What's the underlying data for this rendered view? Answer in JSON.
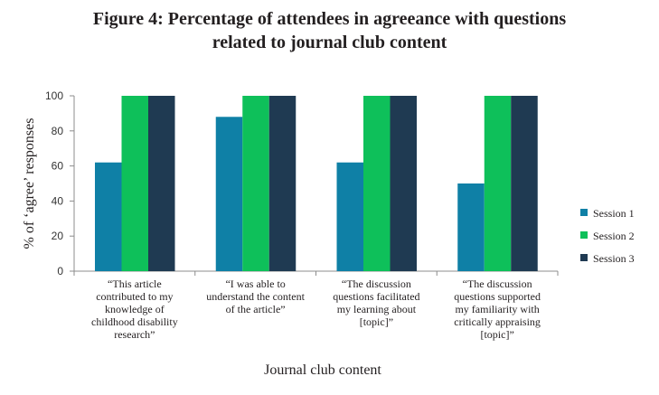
{
  "chart_data": {
    "type": "bar",
    "title_line1": "Figure 4: Percentage of attendees in agreeance with questions",
    "title_line2": "related to journal club content",
    "xlabel": "Journal club content",
    "ylabel": "% of ‘agree’ responses",
    "ylim": [
      0,
      100
    ],
    "yticks": [
      0,
      20,
      40,
      60,
      80,
      100
    ],
    "grid": false,
    "legend_position": "right",
    "categories": [
      [
        "“This article",
        "contributed to my",
        "knowledge of",
        "childhood disability",
        "research”"
      ],
      [
        "“I was able to",
        "understand the content",
        "of the article”"
      ],
      [
        "“The discussion",
        "questions facilitated",
        "my learning about",
        "[topic]”"
      ],
      [
        "“The discussion",
        "questions supported",
        "my familiarity with",
        "critically appraising",
        "[topic]”"
      ]
    ],
    "series": [
      {
        "name": "Session 1",
        "color": "#0f80a6",
        "values": [
          62,
          88,
          62,
          50
        ]
      },
      {
        "name": "Session 2",
        "color": "#0ec05a",
        "values": [
          100,
          100,
          100,
          100
        ]
      },
      {
        "name": "Session 3",
        "color": "#1f3a52",
        "values": [
          100,
          100,
          100,
          100
        ]
      }
    ]
  }
}
